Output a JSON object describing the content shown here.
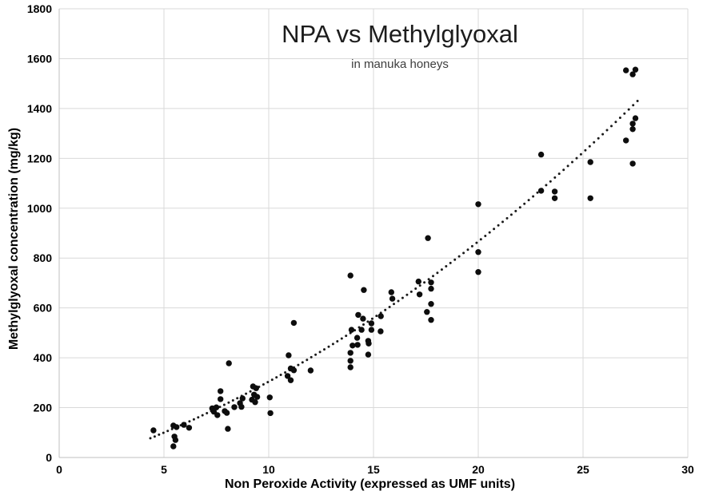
{
  "chart_data": {
    "type": "scatter",
    "title": "NPA vs Methylglyoxal",
    "subtitle": "in manuka honeys",
    "xlabel": "Non Peroxide Activity (expressed as UMF units)",
    "ylabel": "Methylglyoxal concentration (mg/kg)",
    "xlim": [
      0,
      30
    ],
    "ylim": [
      0,
      1800
    ],
    "x_ticks": [
      0,
      5,
      10,
      15,
      20,
      25,
      30
    ],
    "y_ticks": [
      0,
      200,
      400,
      600,
      800,
      1000,
      1200,
      1400,
      1600,
      1800
    ],
    "grid": true,
    "legend": "none",
    "gridline_color": "#d9d9d9",
    "axis_line_color": "#bfbfbf",
    "marker_color": "#0d0d0d",
    "trendline_color": "#1a1a1a",
    "points": [
      [
        4.5,
        109
      ],
      [
        5.45,
        128
      ],
      [
        5.6,
        122
      ],
      [
        5.5,
        84
      ],
      [
        5.55,
        70
      ],
      [
        5.45,
        45
      ],
      [
        5.95,
        131
      ],
      [
        6.2,
        119
      ],
      [
        7.3,
        197
      ],
      [
        7.38,
        184
      ],
      [
        7.5,
        201
      ],
      [
        7.55,
        170
      ],
      [
        7.7,
        266
      ],
      [
        7.7,
        234
      ],
      [
        7.9,
        186
      ],
      [
        8.0,
        179
      ],
      [
        8.05,
        115
      ],
      [
        8.1,
        378
      ],
      [
        8.36,
        202
      ],
      [
        8.63,
        218
      ],
      [
        8.7,
        203
      ],
      [
        8.75,
        237
      ],
      [
        9.25,
        285
      ],
      [
        9.4,
        278
      ],
      [
        9.3,
        252
      ],
      [
        9.45,
        243
      ],
      [
        9.2,
        232
      ],
      [
        9.35,
        222
      ],
      [
        10.05,
        241
      ],
      [
        10.08,
        178
      ],
      [
        10.9,
        327
      ],
      [
        11.05,
        310
      ],
      [
        11.05,
        357
      ],
      [
        11.2,
        350
      ],
      [
        10.95,
        410
      ],
      [
        11.2,
        540
      ],
      [
        12.0,
        349
      ],
      [
        13.9,
        730
      ],
      [
        13.95,
        512
      ],
      [
        13.9,
        420
      ],
      [
        13.9,
        388
      ],
      [
        13.9,
        362
      ],
      [
        14.0,
        449
      ],
      [
        14.22,
        480
      ],
      [
        14.24,
        452
      ],
      [
        14.27,
        572
      ],
      [
        14.43,
        512
      ],
      [
        14.5,
        557
      ],
      [
        14.54,
        672
      ],
      [
        14.75,
        468
      ],
      [
        14.77,
        457
      ],
      [
        14.75,
        413
      ],
      [
        14.9,
        538
      ],
      [
        14.9,
        512
      ],
      [
        15.35,
        567
      ],
      [
        15.34,
        506
      ],
      [
        15.85,
        663
      ],
      [
        15.9,
        637
      ],
      [
        17.15,
        706
      ],
      [
        17.2,
        654
      ],
      [
        17.55,
        584
      ],
      [
        17.6,
        880
      ],
      [
        17.75,
        702
      ],
      [
        17.75,
        677
      ],
      [
        17.75,
        616
      ],
      [
        17.75,
        552
      ],
      [
        20.0,
        1016
      ],
      [
        20.0,
        824
      ],
      [
        20.0,
        744
      ],
      [
        23.0,
        1215
      ],
      [
        23.0,
        1070
      ],
      [
        23.65,
        1067
      ],
      [
        23.65,
        1040
      ],
      [
        25.35,
        1185
      ],
      [
        25.35,
        1040
      ],
      [
        27.05,
        1553
      ],
      [
        27.5,
        1556
      ],
      [
        27.37,
        1537
      ],
      [
        27.5,
        1361
      ],
      [
        27.37,
        1339
      ],
      [
        27.37,
        1317
      ],
      [
        27.05,
        1272
      ],
      [
        27.37,
        1179
      ]
    ],
    "trendline": {
      "style": "dotted",
      "type": "quadratic",
      "equation": "y = 1.02x^2 + 25.6x - 53.5",
      "a": 1.02,
      "b": 25.6,
      "c": -53.5,
      "x_start": 4.35,
      "x_end": 27.6
    }
  }
}
